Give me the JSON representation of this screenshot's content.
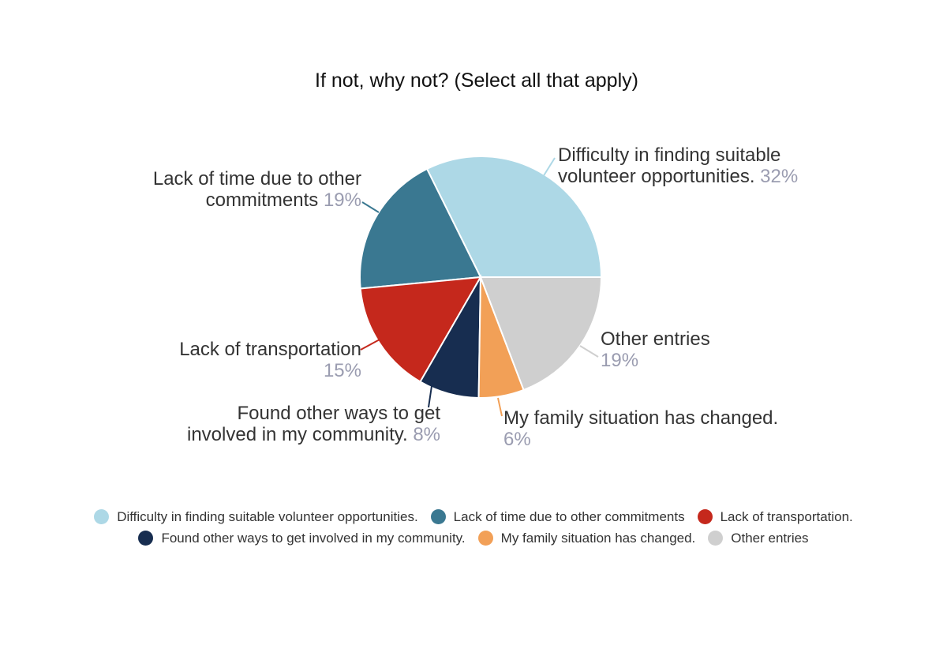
{
  "chart_data": {
    "type": "pie",
    "title": "If not, why not? (Select all that apply)",
    "slices": [
      {
        "label": "Difficulty in finding suitable volunteer opportunities.",
        "legend": "Difficulty in finding suitable volunteer opportunities.",
        "value": 32,
        "pct_label": "32%",
        "color": "#add8e6"
      },
      {
        "label": "Lack of time due to other commitments",
        "legend": "Lack of time due to other commitments",
        "value": 19,
        "pct_label": "19%",
        "color": "#3a7891"
      },
      {
        "label": "Lack of transportation",
        "legend": "Lack of transportation.",
        "value": 15,
        "pct_label": "15%",
        "color": "#c5281c"
      },
      {
        "label": "Found other ways to get involved in my community.",
        "legend": "Found other ways to get involved in my community.",
        "value": 8,
        "pct_label": "8%",
        "color": "#172d50"
      },
      {
        "label": "My family situation has changed.",
        "legend": "My family situation has changed.",
        "value": 6,
        "pct_label": "6%",
        "color": "#f2a057"
      },
      {
        "label": "Other entries",
        "legend": "Other entries",
        "value": 19,
        "pct_label": "19%",
        "color": "#cfcfcf"
      }
    ],
    "legend_position": "bottom"
  }
}
